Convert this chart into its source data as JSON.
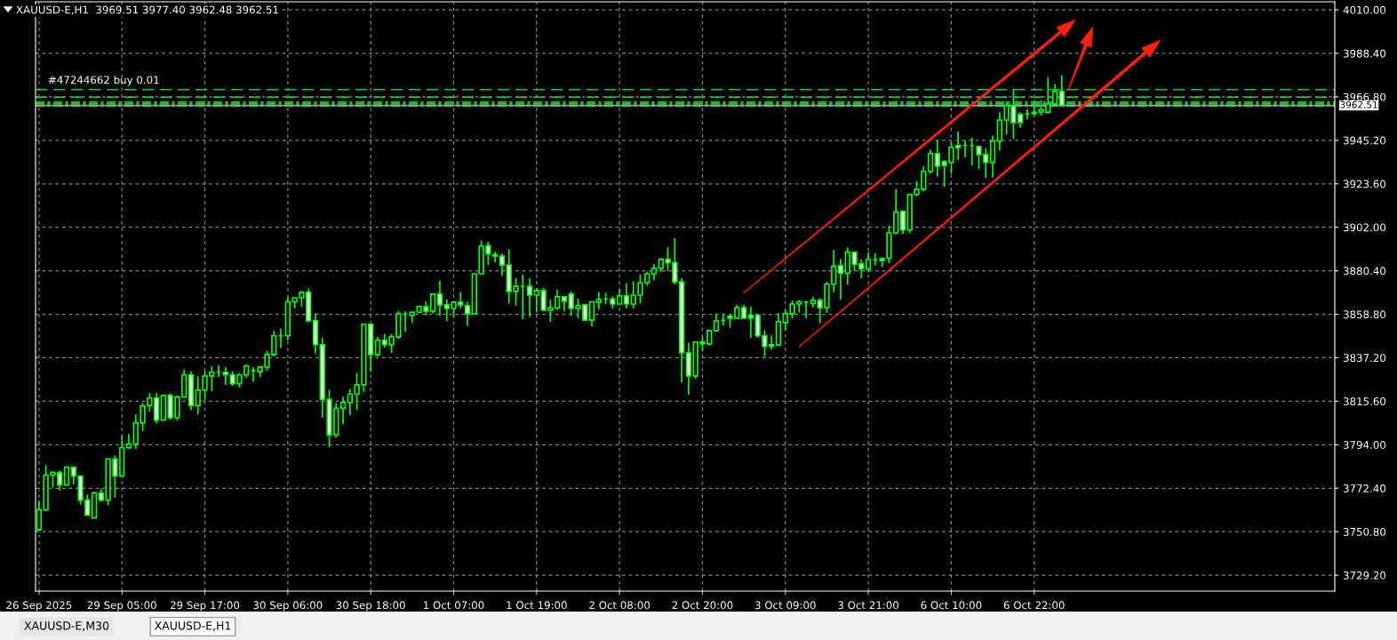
{
  "chart_data": {
    "type": "candlestick",
    "title": "XAUUSD-E,H1  3969.51 3977.40 3962.48 3962.51",
    "color": "#00ff00",
    "categories": [
      "26 Sep 2025",
      null,
      null,
      null,
      null,
      null,
      null,
      null,
      null,
      null,
      null,
      null,
      "29 Sep 05:00",
      null,
      null,
      null,
      null,
      null,
      null,
      null,
      null,
      null,
      null,
      null,
      "29 Sep 17:00",
      null,
      null,
      null,
      null,
      null,
      null,
      null,
      null,
      null,
      null,
      null,
      "30 Sep 06:00",
      null,
      null,
      null,
      null,
      null,
      null,
      null,
      null,
      null,
      null,
      null,
      "30 Sep 18:00",
      null,
      null,
      null,
      null,
      null,
      null,
      null,
      null,
      null,
      null,
      null,
      "1 Oct 07:00",
      null,
      null,
      null,
      null,
      null,
      null,
      null,
      null,
      null,
      null,
      null,
      "1 Oct 19:00",
      null,
      null,
      null,
      null,
      null,
      null,
      null,
      null,
      null,
      null,
      null,
      "2 Oct 08:00",
      null,
      null,
      null,
      null,
      null,
      null,
      null,
      null,
      null,
      null,
      null,
      "2 Oct 20:00",
      null,
      null,
      null,
      null,
      null,
      null,
      null,
      null,
      null,
      null,
      null,
      "3 Oct 09:00",
      null,
      null,
      null,
      null,
      null,
      null,
      null,
      null,
      null,
      null,
      null,
      "3 Oct 21:00",
      null,
      null,
      null,
      null,
      null,
      null,
      null,
      null,
      null,
      null,
      null,
      "6 Oct 10:00",
      null,
      null,
      null,
      null,
      null,
      null,
      null,
      null,
      null,
      null,
      null,
      "6 Oct 22:00",
      null,
      null,
      null,
      null,
      null,
      null,
      null,
      null,
      null,
      null,
      null,
      null,
      null,
      null,
      null,
      null,
      null,
      null,
      null,
      null,
      null,
      null,
      null,
      null,
      null,
      null,
      null,
      null,
      null,
      null,
      null,
      null,
      null,
      null,
      null,
      null,
      null,
      null,
      null,
      null,
      null,
      null,
      null
    ],
    "ohlc": [
      [
        3751.8,
        3766.2,
        3751.1,
        3761.8
      ],
      [
        3761.7,
        3783.9,
        3760.9,
        3778.9
      ],
      [
        3778.9,
        3780.8,
        3772.7,
        3780.2
      ],
      [
        3780.2,
        3781.2,
        3771.2,
        3774.0
      ],
      [
        3774.0,
        3782.8,
        3774.0,
        3782.8
      ],
      [
        3782.8,
        3782.8,
        3774.3,
        3778.4
      ],
      [
        3778.4,
        3778.4,
        3764.3,
        3766.5
      ],
      [
        3766.5,
        3769.2,
        3759.0,
        3759.0
      ],
      [
        3757.7,
        3770.6,
        3757.7,
        3770.0
      ],
      [
        3770.0,
        3772.2,
        3765.8,
        3766.5
      ],
      [
        3766.5,
        3786.9,
        3763.9,
        3786.9
      ],
      [
        3786.9,
        3788.6,
        3767.7,
        3778.4
      ],
      [
        3778.4,
        3798.6,
        3778.4,
        3792.5
      ],
      [
        3792.5,
        3799.3,
        3791.9,
        3794.3
      ],
      [
        3794.3,
        3809.0,
        3791.9,
        3804.9
      ],
      [
        3804.9,
        3814.7,
        3800.8,
        3813.2
      ],
      [
        3813.5,
        3819.6,
        3810.5,
        3817.2
      ],
      [
        3817.2,
        3819.6,
        3804.7,
        3806.2
      ],
      [
        3806.2,
        3818.5,
        3806.2,
        3818.5
      ],
      [
        3818.5,
        3819.6,
        3806.5,
        3807.4
      ],
      [
        3807.4,
        3818.5,
        3806.0,
        3817.7
      ],
      [
        3817.7,
        3831.5,
        3817.7,
        3828.7
      ],
      [
        3828.7,
        3830.4,
        3811.3,
        3813.5
      ],
      [
        3813.5,
        3827.9,
        3809.1,
        3821.2
      ],
      [
        3821.2,
        3830.7,
        3816.0,
        3828.2
      ],
      [
        3828.2,
        3833.1,
        3820.6,
        3830.0
      ],
      [
        3830.0,
        3833.5,
        3827.6,
        3830.0
      ],
      [
        3830.0,
        3832.6,
        3823.7,
        3828.7
      ],
      [
        3828.7,
        3830.4,
        3823.2,
        3824.3
      ],
      [
        3824.3,
        3829.6,
        3822.4,
        3828.7
      ],
      [
        3828.7,
        3834.0,
        3827.2,
        3833.1
      ],
      [
        3830.7,
        3832.6,
        3825.3,
        3830.7
      ],
      [
        3830.3,
        3833.2,
        3827.5,
        3832.6
      ],
      [
        3832.5,
        3840.7,
        3830.7,
        3838.8
      ],
      [
        3838.8,
        3850.7,
        3837.8,
        3848.1
      ],
      [
        3848.1,
        3851.7,
        3842.2,
        3848.1
      ],
      [
        3848.1,
        3867.2,
        3845.9,
        3865.0
      ],
      [
        3865.0,
        3867.0,
        3861.6,
        3867.0
      ],
      [
        3867.0,
        3870.4,
        3862.5,
        3869.7
      ],
      [
        3869.7,
        3871.6,
        3854.7,
        3855.6
      ],
      [
        3855.6,
        3859.1,
        3839.3,
        3843.7
      ],
      [
        3843.7,
        3847.3,
        3807.4,
        3816.5
      ],
      [
        3816.5,
        3821.2,
        3792.9,
        3798.8
      ],
      [
        3798.8,
        3814.7,
        3797.6,
        3812.1
      ],
      [
        3812.1,
        3817.9,
        3804.3,
        3815.0
      ],
      [
        3815.0,
        3821.9,
        3808.7,
        3819.1
      ],
      [
        3819.1,
        3829.7,
        3811.3,
        3823.8
      ],
      [
        3823.8,
        3854.2,
        3820.1,
        3853.8
      ],
      [
        3853.8,
        3853.8,
        3830.4,
        3838.8
      ],
      [
        3838.8,
        3847.6,
        3837.8,
        3845.9
      ],
      [
        3845.9,
        3849.1,
        3842.2,
        3843.7
      ],
      [
        3843.7,
        3849.1,
        3839.6,
        3847.6
      ],
      [
        3847.6,
        3860.6,
        3846.6,
        3859.1
      ],
      [
        3858.9,
        3860.1,
        3850.1,
        3858.9
      ],
      [
        3858.2,
        3860.3,
        3854.4,
        3859.8
      ],
      [
        3859.8,
        3863.2,
        3859.4,
        3862.6
      ],
      [
        3862.5,
        3865.3,
        3858.3,
        3860.3
      ],
      [
        3860.3,
        3868.8,
        3859.1,
        3868.8
      ],
      [
        3868.8,
        3875.5,
        3857.9,
        3863.5
      ],
      [
        3863.5,
        3866.1,
        3855.4,
        3861.7
      ],
      [
        3861.7,
        3864.7,
        3857.2,
        3864.7
      ],
      [
        3864.8,
        3869.8,
        3861.7,
        3863.5
      ],
      [
        3863.1,
        3865.0,
        3853.2,
        3859.1
      ],
      [
        3859.1,
        3878.9,
        3859.1,
        3878.9
      ],
      [
        3878.9,
        3895.4,
        3878.9,
        3892.6
      ],
      [
        3892.9,
        3894.8,
        3883.3,
        3888.8
      ],
      [
        3888.5,
        3889.9,
        3884.8,
        3887.7
      ],
      [
        3887.7,
        3888.8,
        3877.9,
        3883.3
      ],
      [
        3883.3,
        3891.0,
        3864.2,
        3870.1
      ],
      [
        3870.1,
        3876.7,
        3863.2,
        3872.7
      ],
      [
        3872.7,
        3878.5,
        3856.4,
        3872.7
      ],
      [
        3872.7,
        3876.7,
        3857.6,
        3868.3
      ],
      [
        3868.3,
        3872.0,
        3859.8,
        3870.6
      ],
      [
        3870.6,
        3872.0,
        3860.3,
        3860.8
      ],
      [
        3860.8,
        3866.1,
        3855.1,
        3862.0
      ],
      [
        3862.0,
        3871.1,
        3861.0,
        3867.5
      ],
      [
        3867.5,
        3867.5,
        3860.3,
        3865.3
      ],
      [
        3868.8,
        3870.1,
        3858.1,
        3861.7
      ],
      [
        3861.7,
        3866.7,
        3856.9,
        3863.1
      ],
      [
        3863.5,
        3863.5,
        3855.9,
        3855.9
      ],
      [
        3855.9,
        3865.0,
        3852.8,
        3865.0
      ],
      [
        3864.7,
        3869.8,
        3861.0,
        3866.1
      ],
      [
        3866.4,
        3869.4,
        3863.8,
        3866.4
      ],
      [
        3866.4,
        3867.6,
        3861.6,
        3863.9
      ],
      [
        3863.9,
        3871.1,
        3863.9,
        3867.9
      ],
      [
        3867.9,
        3874.2,
        3861.6,
        3863.9
      ],
      [
        3863.9,
        3875.1,
        3861.6,
        3868.3
      ],
      [
        3868.3,
        3878.6,
        3864.2,
        3874.5
      ],
      [
        3874.5,
        3879.9,
        3873.0,
        3878.9
      ],
      [
        3878.9,
        3883.8,
        3875.7,
        3881.6
      ],
      [
        3881.6,
        3886.7,
        3879.7,
        3886.0
      ],
      [
        3886.0,
        3892.1,
        3880.4,
        3884.4
      ],
      [
        3884.4,
        3896.6,
        3873.5,
        3874.9
      ],
      [
        3874.9,
        3876.7,
        3824.9,
        3839.7
      ],
      [
        3839.7,
        3844.7,
        3818.8,
        3828.2
      ],
      [
        3828.2,
        3845.0,
        3826.8,
        3845.0
      ],
      [
        3845.0,
        3847.6,
        3840.3,
        3844.1
      ],
      [
        3844.1,
        3850.7,
        3843.2,
        3850.7
      ],
      [
        3850.7,
        3859.1,
        3850.3,
        3855.5
      ],
      [
        3855.8,
        3859.1,
        3853.2,
        3855.8
      ],
      [
        3857.9,
        3858.6,
        3852.0,
        3856.9
      ],
      [
        3856.9,
        3863.5,
        3856.9,
        3862.1
      ],
      [
        3862.1,
        3863.5,
        3856.4,
        3856.9
      ],
      [
        3858.2,
        3862.6,
        3847.1,
        3856.9
      ],
      [
        3858.2,
        3859.1,
        3847.3,
        3848.1
      ],
      [
        3848.1,
        3850.9,
        3837.6,
        3842.8
      ],
      [
        3843.7,
        3848.2,
        3841.3,
        3842.8
      ],
      [
        3843.5,
        3859.1,
        3843.5,
        3855.1
      ],
      [
        3854.7,
        3860.9,
        3850.6,
        3859.1
      ],
      [
        3859.1,
        3865.4,
        3856.7,
        3863.9
      ],
      [
        3863.9,
        3865.7,
        3859.8,
        3865.0
      ],
      [
        3864.8,
        3864.8,
        3856.7,
        3864.8
      ],
      [
        3864.2,
        3867.5,
        3862.1,
        3865.7
      ],
      [
        3865.7,
        3866.9,
        3854.4,
        3862.1
      ],
      [
        3862.1,
        3874.9,
        3859.5,
        3873.8
      ],
      [
        3873.8,
        3890.7,
        3869.7,
        3882.6
      ],
      [
        3882.9,
        3886.3,
        3866.0,
        3879.2
      ],
      [
        3879.2,
        3891.9,
        3873.4,
        3889.7
      ],
      [
        3889.7,
        3889.7,
        3880.1,
        3883.6
      ],
      [
        3883.9,
        3886.1,
        3876.7,
        3881.4
      ],
      [
        3881.4,
        3889.5,
        3879.7,
        3886.1
      ],
      [
        3885.8,
        3889.1,
        3883.0,
        3885.8
      ],
      [
        3886.5,
        3887.0,
        3882.2,
        3885.5
      ],
      [
        3886.7,
        3902.9,
        3884.1,
        3899.2
      ],
      [
        3899.2,
        3920.9,
        3898.5,
        3909.5
      ],
      [
        3909.9,
        3909.9,
        3898.6,
        3900.7
      ],
      [
        3900.7,
        3918.3,
        3899.2,
        3918.3
      ],
      [
        3918.3,
        3924.9,
        3917.3,
        3920.9
      ],
      [
        3920.9,
        3932.3,
        3919.8,
        3929.8
      ],
      [
        3929.8,
        3940.5,
        3928.7,
        3938.6
      ],
      [
        3938.6,
        3945.2,
        3927.3,
        3932.4
      ],
      [
        3934.6,
        3935.4,
        3922.1,
        3932.7
      ],
      [
        3934.2,
        3944.5,
        3928.6,
        3941.7
      ],
      [
        3942.6,
        3949.6,
        3935.4,
        3941.5
      ],
      [
        3942.6,
        3945.2,
        3936.7,
        3942.6
      ],
      [
        3942.6,
        3946.5,
        3932.7,
        3942.6
      ],
      [
        3942.1,
        3942.6,
        3930.9,
        3938.1
      ],
      [
        3938.1,
        3941.2,
        3926.5,
        3934.2
      ],
      [
        3934.2,
        3947.4,
        3926.8,
        3944.8
      ],
      [
        3944.8,
        3959.2,
        3940.3,
        3955.3
      ],
      [
        3955.3,
        3964.6,
        3948.1,
        3962.4
      ],
      [
        3962.4,
        3970.6,
        3945.9,
        3954.0
      ],
      [
        3958.0,
        3959.2,
        3951.4,
        3954.0
      ],
      [
        3958.3,
        3960.6,
        3955.5,
        3958.3
      ],
      [
        3959.2,
        3965.0,
        3957.4,
        3958.4
      ],
      [
        3959.2,
        3965.0,
        3957.4,
        3960.3
      ],
      [
        3959.2,
        3976.5,
        3958.4,
        3963.3
      ],
      [
        3963.3,
        3973.1,
        3962.8,
        3969.5
      ],
      [
        3969.51,
        3977.4,
        3962.48,
        3962.51
      ],
      null,
      null,
      null,
      null,
      null,
      null,
      null,
      null,
      null,
      null,
      null,
      null,
      null,
      null,
      null,
      null,
      null,
      null,
      null,
      null,
      null,
      null,
      null,
      null,
      null,
      null,
      null,
      null,
      null,
      null,
      null,
      null,
      null,
      null,
      null,
      null,
      null,
      null,
      null
    ],
    "ylim": [
      3721.3,
      4014.0
    ],
    "yticks": [
      {
        "value": 3729.2,
        "label": "3729.20"
      },
      {
        "value": 3750.8,
        "label": "3750.80"
      },
      {
        "value": 3772.4,
        "label": "3772.40"
      },
      {
        "value": 3794.0,
        "label": "3794.00"
      },
      {
        "value": 3815.6,
        "label": "3815.60"
      },
      {
        "value": 3837.2,
        "label": "3837.20"
      },
      {
        "value": 3858.8,
        "label": "3858.80"
      },
      {
        "value": 3880.4,
        "label": "3880.40"
      },
      {
        "value": 3902.0,
        "label": "3902.00"
      },
      {
        "value": 3923.6,
        "label": "3923.60"
      },
      {
        "value": 3945.2,
        "label": "3945.20"
      },
      {
        "value": 3966.8,
        "label": "3966.80"
      },
      {
        "value": 3988.4,
        "label": "3988.40"
      },
      {
        "value": 4010.0,
        "label": "4010.00"
      }
    ],
    "grid": true,
    "ref_lines": [
      {
        "axis": "y",
        "value": 3970.4,
        "label": "#47244662 buy 0.01",
        "color": "#22cc22",
        "line_style": "dashed"
      },
      {
        "axis": "y",
        "value": 3966.6,
        "color": "#22cc22",
        "line_style": "dashed"
      },
      {
        "axis": "y",
        "value": 3964.2,
        "color": "#22cc22",
        "line_style": "dashdot"
      },
      {
        "axis": "y",
        "value": 3963.3,
        "color": "#22cc22",
        "line_style": "dashdot"
      },
      {
        "axis": "y",
        "value": 3962.2,
        "color": "#22cc22",
        "line_style": "dashdot"
      },
      {
        "axis": "y",
        "value": 3962.51,
        "label": "3962.51",
        "color": "#9aa0a6",
        "line_style": "solid"
      }
    ],
    "annotations": [
      "XAUUSD-E,M30",
      "XAUUSD-E,H1"
    ]
  }
}
